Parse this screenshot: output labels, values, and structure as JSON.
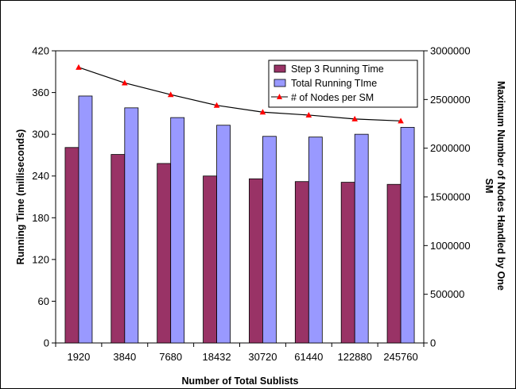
{
  "chart_data": {
    "type": "bar",
    "categories": [
      "1920",
      "3840",
      "7680",
      "18432",
      "30720",
      "61440",
      "122880",
      "245760"
    ],
    "series": [
      {
        "name": "Step 3 Running Time",
        "type": "bar",
        "axis": "left",
        "color": "#993366",
        "values": [
          281,
          271,
          258,
          240,
          236,
          232,
          231,
          228
        ]
      },
      {
        "name": "Total Running TIme",
        "type": "bar",
        "axis": "left",
        "color": "#9999ff",
        "values": [
          355,
          338,
          324,
          313,
          297,
          296,
          300,
          310
        ]
      },
      {
        "name": "# of Nodes per SM",
        "type": "line",
        "axis": "right",
        "color": "#000000",
        "marker_color": "#ff0000",
        "values": [
          2830000,
          2670000,
          2550000,
          2440000,
          2370000,
          2340000,
          2300000,
          2280000
        ]
      }
    ],
    "xlabel": "Number of Total Sublists",
    "ylabel": "Running Time (milliseconds)",
    "y2label_line1": "Maximum Number of Nodes Handled by One",
    "y2label_line2": "SM",
    "ylim": [
      0,
      420
    ],
    "yticks": [
      "0",
      "60",
      "120",
      "180",
      "240",
      "300",
      "360",
      "420"
    ],
    "y2lim": [
      0,
      3000000
    ],
    "y2ticks": [
      "0",
      "500000",
      "1000000",
      "1500000",
      "2000000",
      "2500000",
      "3000000"
    ],
    "legend_position": "top-right",
    "grid": false
  }
}
